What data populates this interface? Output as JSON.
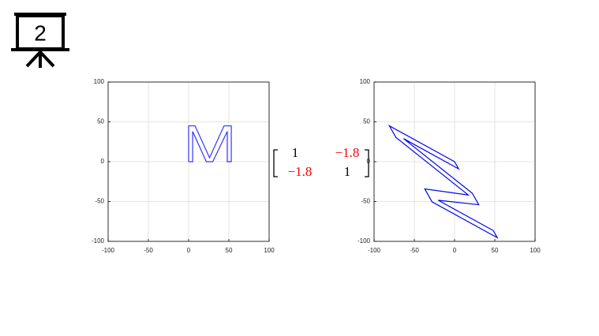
{
  "slide_number": "2",
  "matrix": {
    "rows": [
      [
        {
          "text": "1",
          "color": "#000000"
        },
        {
          "text": "−1.8",
          "color": "#ff0000"
        }
      ],
      [
        {
          "text": "−1.8",
          "color": "#ff0000"
        },
        {
          "text": "1",
          "color": "#000000"
        }
      ]
    ]
  },
  "chart_data": [
    {
      "type": "line",
      "color": "#3333ff",
      "grid": true,
      "x": [
        0,
        0,
        8,
        26,
        44,
        53,
        53,
        48,
        48,
        30,
        22,
        5,
        5,
        0
      ],
      "values": [
        0,
        45,
        45,
        5,
        45,
        45,
        0,
        0,
        38,
        0,
        0,
        38,
        0,
        0
      ],
      "xlim": [
        -100,
        100
      ],
      "ylim": [
        -100,
        100
      ],
      "xticks": [
        -100,
        -50,
        0,
        50,
        100
      ],
      "yticks": [
        -100,
        -50,
        0,
        50,
        100
      ]
    },
    {
      "type": "line",
      "color": "#0000ee",
      "grid": true,
      "x": [
        0,
        -81,
        -73,
        17,
        -37,
        -28,
        53,
        48,
        -20.4,
        30,
        22,
        -63.4,
        5,
        0
      ],
      "values": [
        0,
        45,
        30.6,
        -41.8,
        -34.2,
        -50.4,
        -95.4,
        -86.4,
        -48.4,
        -54,
        -39.6,
        29,
        -9,
        0
      ],
      "xlim": [
        -100,
        100
      ],
      "ylim": [
        -100,
        100
      ],
      "xticks": [
        -100,
        -50,
        0,
        50,
        100
      ],
      "yticks": [
        -100,
        -50,
        0,
        50,
        100
      ]
    }
  ]
}
